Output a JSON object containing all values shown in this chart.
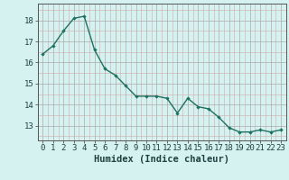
{
  "x": [
    0,
    1,
    2,
    3,
    4,
    5,
    6,
    7,
    8,
    9,
    10,
    11,
    12,
    13,
    14,
    15,
    16,
    17,
    18,
    19,
    20,
    21,
    22,
    23
  ],
  "y": [
    16.4,
    16.8,
    17.5,
    18.1,
    18.2,
    16.6,
    15.7,
    15.4,
    14.9,
    14.4,
    14.4,
    14.4,
    14.3,
    13.6,
    14.3,
    13.9,
    13.8,
    13.4,
    12.9,
    12.7,
    12.7,
    12.8,
    12.7,
    12.8
  ],
  "line_color": "#1e7060",
  "marker": "D",
  "marker_size": 2.2,
  "bg_color": "#d5f2f0",
  "grid_color_major": "#aaaaaa",
  "grid_color_minor": "#d4aaaa",
  "xlabel": "Humidex (Indice chaleur)",
  "xlabel_fontsize": 7.5,
  "ylabel_ticks": [
    13,
    14,
    15,
    16,
    17,
    18
  ],
  "ylim": [
    12.3,
    18.8
  ],
  "xlim": [
    -0.5,
    23.5
  ],
  "tick_fontsize": 6.5
}
